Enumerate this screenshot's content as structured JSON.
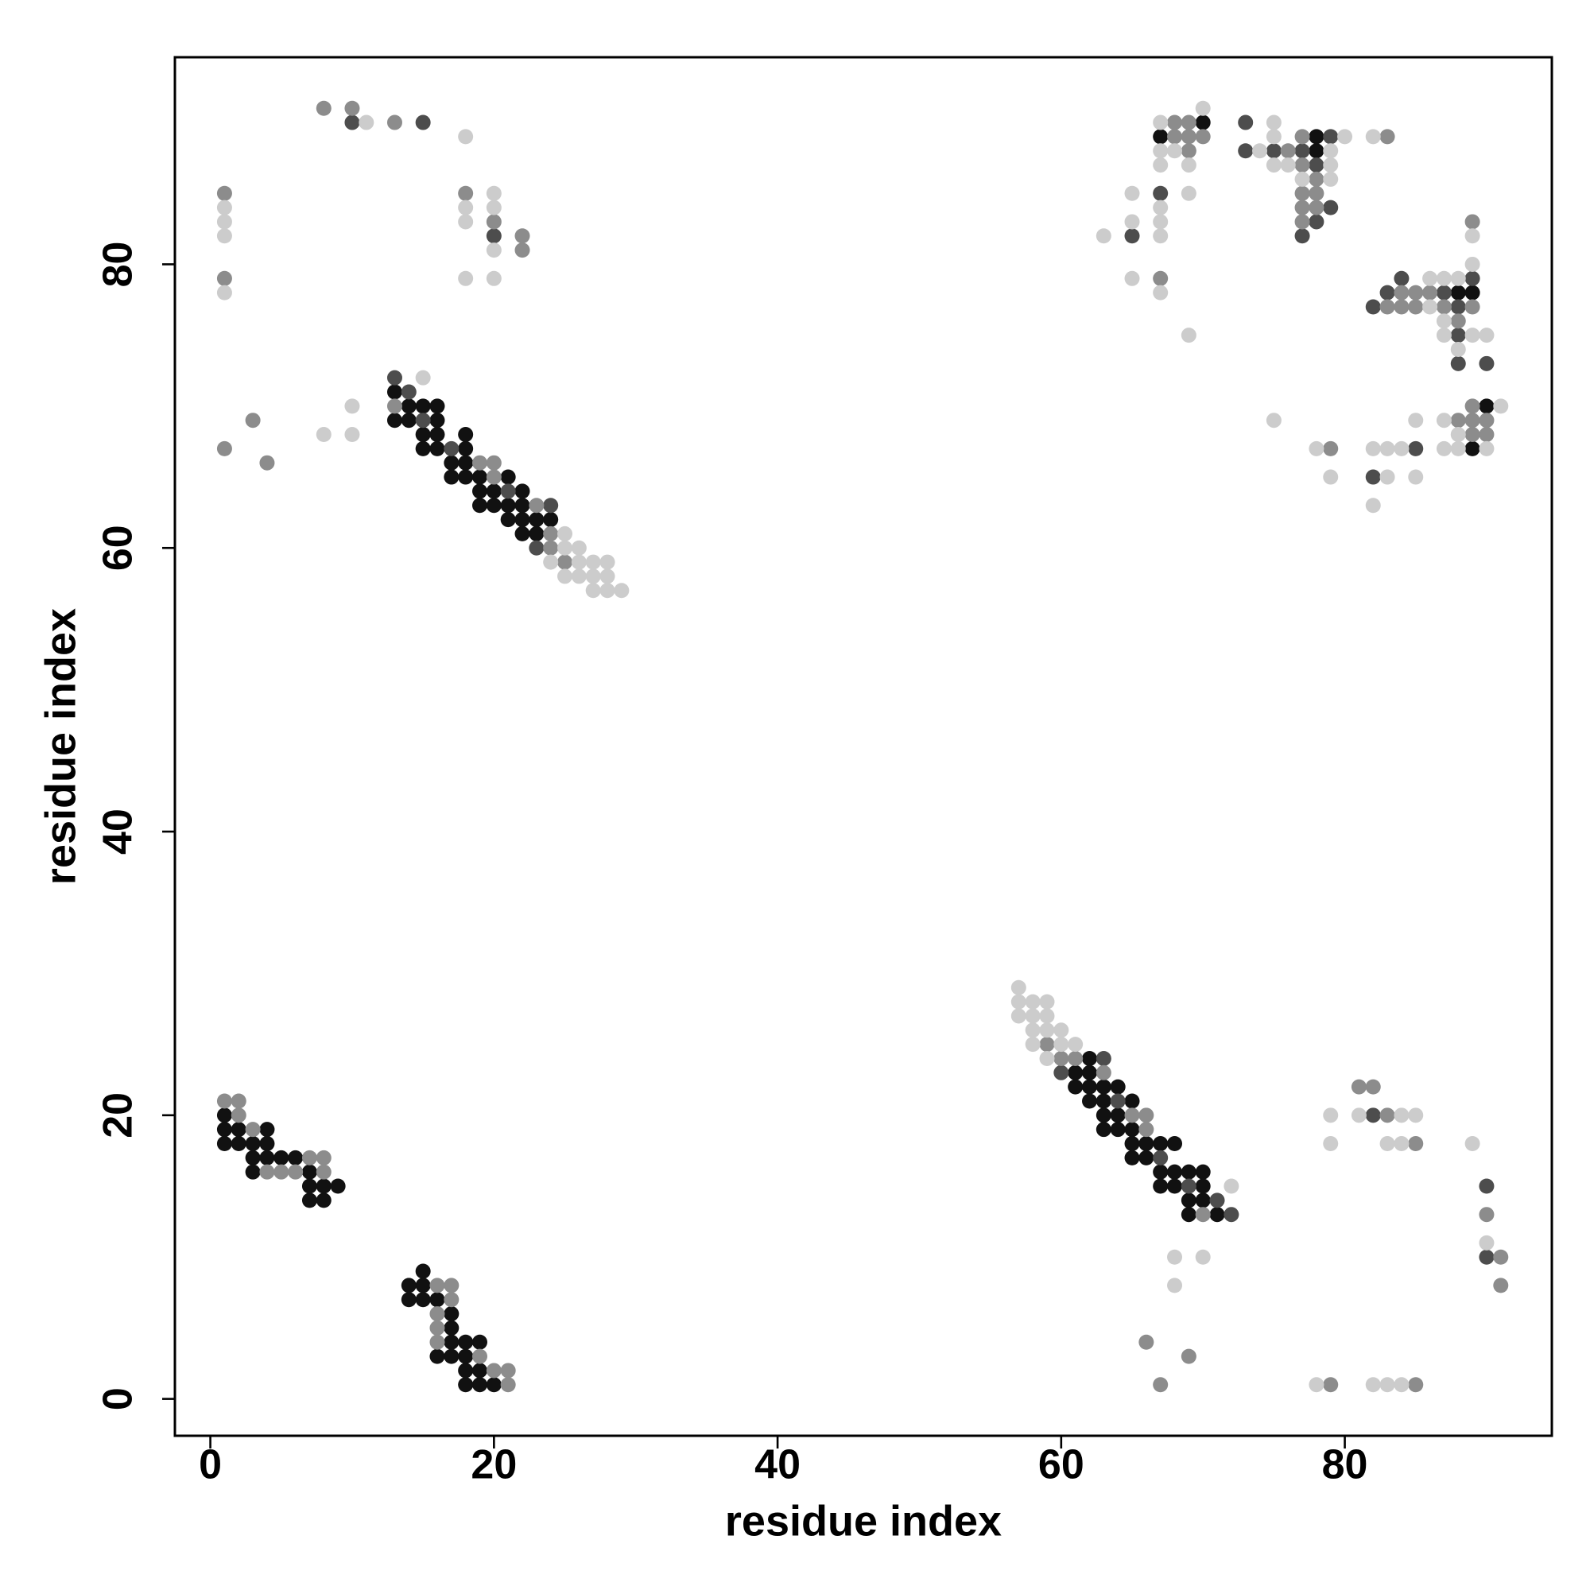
{
  "chart_data": {
    "type": "scatter",
    "x_label": "residue index",
    "y_label": "residue index",
    "xlim": [
      -2.5,
      94.6
    ],
    "ylim": [
      -2.6,
      94.6
    ],
    "xticks": [
      0,
      20,
      40,
      60,
      80
    ],
    "yticks": [
      0,
      20,
      40,
      60,
      80
    ],
    "series": [
      {
        "color": "#111111",
        "x": [
          20,
          19,
          19,
          19,
          18,
          18,
          18,
          18,
          17,
          17,
          17,
          17,
          16,
          16,
          15,
          15,
          15,
          14,
          14,
          62,
          61,
          62,
          61,
          62,
          63,
          64,
          62,
          63,
          65,
          63,
          64,
          63,
          64,
          65,
          65,
          66,
          67,
          68,
          65,
          66,
          67,
          68,
          69,
          70,
          67,
          68,
          70,
          69,
          70,
          69,
          71,
          88,
          89,
          90,
          89,
          1,
          1,
          2,
          4,
          1,
          2,
          3,
          4,
          3,
          4,
          5,
          6,
          3,
          7,
          7,
          8,
          9,
          7,
          8,
          24,
          23,
          23,
          22,
          22,
          22,
          22,
          21,
          21,
          21,
          20,
          20,
          19,
          19,
          19,
          18,
          18,
          18,
          18,
          17,
          17,
          16,
          16,
          16,
          16,
          15,
          15,
          15,
          14,
          14,
          13,
          13,
          78,
          78,
          70,
          67
        ],
        "values": [
          1,
          1,
          2,
          4,
          1,
          2,
          3,
          4,
          3,
          4,
          5,
          6,
          3,
          7,
          7,
          8,
          9,
          7,
          8,
          24,
          23,
          23,
          22,
          22,
          22,
          22,
          21,
          21,
          21,
          20,
          20,
          19,
          19,
          19,
          18,
          18,
          18,
          18,
          17,
          17,
          16,
          16,
          16,
          16,
          15,
          15,
          15,
          14,
          14,
          13,
          13,
          78,
          78,
          70,
          67,
          20,
          19,
          19,
          19,
          18,
          18,
          18,
          18,
          17,
          17,
          17,
          17,
          16,
          16,
          15,
          15,
          15,
          14,
          14,
          62,
          61,
          62,
          61,
          62,
          63,
          64,
          62,
          63,
          65,
          63,
          64,
          63,
          64,
          65,
          65,
          66,
          67,
          68,
          65,
          66,
          67,
          68,
          69,
          70,
          67,
          68,
          70,
          69,
          70,
          69,
          71,
          88,
          89,
          90,
          89
        ]
      },
      {
        "color": "#4d4d4d",
        "x": [
          63,
          60,
          64,
          67,
          69,
          71,
          72,
          82,
          90,
          90,
          84,
          89,
          83,
          87,
          82,
          88,
          88,
          88,
          90,
          85,
          82,
          24,
          23,
          21,
          17,
          15,
          14,
          13,
          20,
          15,
          10,
          79,
          79,
          78,
          78,
          77,
          77,
          75,
          73,
          73,
          67,
          65
        ],
        "values": [
          24,
          23,
          21,
          17,
          15,
          14,
          13,
          20,
          15,
          10,
          79,
          79,
          78,
          78,
          77,
          77,
          75,
          73,
          73,
          67,
          65,
          63,
          60,
          64,
          67,
          69,
          71,
          72,
          82,
          90,
          90,
          84,
          89,
          83,
          87,
          82,
          88,
          88,
          88,
          90,
          85,
          82
        ]
      },
      {
        "color": "#8c8c8c",
        "x": [
          21,
          21,
          20,
          19,
          17,
          17,
          16,
          16,
          16,
          16,
          59,
          60,
          61,
          63,
          65,
          66,
          66,
          70,
          81,
          82,
          83,
          85,
          90,
          91,
          91,
          66,
          69,
          67,
          79,
          85,
          89,
          84,
          85,
          86,
          83,
          84,
          85,
          87,
          89,
          88,
          88,
          89,
          90,
          89,
          89,
          90,
          79,
          1,
          2,
          2,
          3,
          7,
          8,
          4,
          5,
          6,
          8,
          25,
          24,
          24,
          23,
          20,
          20,
          19,
          13,
          22,
          22,
          20,
          18,
          13,
          10,
          8,
          4,
          3,
          1,
          1,
          1,
          83,
          78,
          78,
          78,
          77,
          77,
          77,
          77,
          77,
          76,
          69,
          69,
          69,
          70,
          68,
          68,
          67
        ],
        "values": [
          1,
          2,
          2,
          3,
          7,
          8,
          4,
          5,
          6,
          8,
          25,
          24,
          24,
          23,
          20,
          20,
          19,
          13,
          22,
          22,
          20,
          18,
          13,
          10,
          8,
          4,
          3,
          1,
          1,
          1,
          83,
          78,
          78,
          78,
          77,
          77,
          77,
          77,
          77,
          76,
          69,
          69,
          69,
          70,
          68,
          68,
          67,
          21,
          21,
          20,
          19,
          17,
          17,
          16,
          16,
          16,
          16,
          59,
          60,
          61,
          63,
          65,
          66,
          66,
          70,
          81,
          82,
          83,
          85,
          90,
          91,
          91,
          66,
          69,
          67,
          79,
          85,
          89,
          84,
          85,
          86,
          83,
          84,
          85,
          87,
          89,
          88,
          88,
          89,
          90,
          89,
          89,
          90,
          79
        ]
      },
      {
        "color": "#cccccc",
        "x": [
          57,
          57,
          58,
          59,
          57,
          58,
          59,
          58,
          59,
          60,
          58,
          60,
          61,
          59,
          72,
          79,
          81,
          84,
          85,
          79,
          83,
          84,
          89,
          90,
          68,
          70,
          68,
          78,
          82,
          83,
          84,
          89,
          89,
          86,
          87,
          88,
          86,
          87,
          87,
          89,
          90,
          88,
          87,
          91,
          88,
          90,
          88,
          87,
          85,
          84,
          83,
          82,
          83,
          85,
          82,
          78,
          79,
          75,
          29,
          28,
          28,
          28,
          27,
          27,
          27,
          26,
          26,
          26,
          25,
          25,
          25,
          24,
          15,
          20,
          20,
          20,
          20,
          18,
          18,
          18,
          18,
          11,
          10,
          10,
          8,
          1,
          1,
          1,
          1,
          82,
          80,
          79,
          79,
          79,
          77,
          76,
          75,
          75,
          75,
          74,
          69,
          70,
          68,
          67,
          67,
          67,
          69,
          67,
          67,
          67,
          65,
          65,
          63,
          67,
          65,
          69
        ],
        "values": [
          29,
          28,
          28,
          28,
          27,
          27,
          27,
          26,
          26,
          26,
          25,
          25,
          25,
          24,
          15,
          20,
          20,
          20,
          20,
          18,
          18,
          18,
          18,
          11,
          10,
          10,
          8,
          1,
          1,
          1,
          1,
          82,
          80,
          79,
          79,
          79,
          77,
          76,
          75,
          75,
          75,
          74,
          69,
          70,
          68,
          67,
          67,
          67,
          69,
          67,
          67,
          67,
          65,
          65,
          63,
          67,
          65,
          69,
          57,
          57,
          58,
          59,
          57,
          58,
          59,
          58,
          59,
          60,
          58,
          60,
          61,
          59,
          72,
          79,
          81,
          84,
          85,
          79,
          83,
          84,
          89,
          90,
          68,
          70,
          68,
          78,
          82,
          83,
          84,
          89,
          89,
          86,
          87,
          88,
          86,
          87,
          87,
          89,
          90,
          88,
          87,
          91,
          88,
          90,
          88,
          87,
          85,
          84,
          83,
          82,
          83,
          85,
          82,
          78,
          79,
          75
        ]
      }
    ]
  }
}
